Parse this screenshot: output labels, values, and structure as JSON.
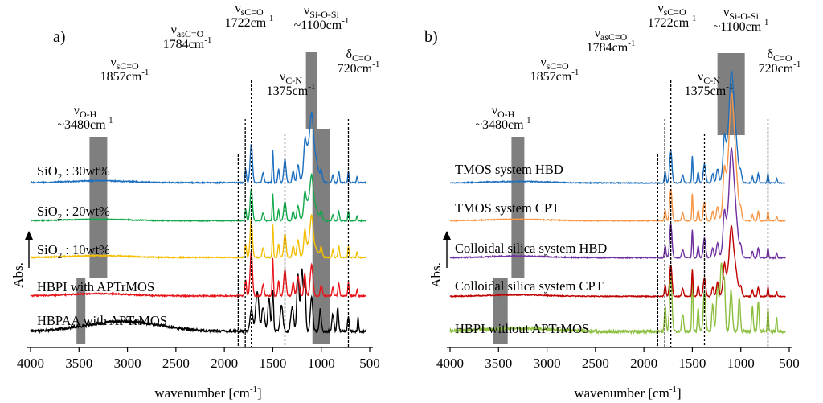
{
  "figure": {
    "xlabel": "wavenumber [cm",
    "xlabel_sup": "-1",
    "xlabel_end": "]",
    "ylabel": "Abs."
  },
  "chart_data": [
    {
      "type": "line",
      "panel": "a)",
      "xlim": [
        4000,
        500
      ],
      "xticks": [
        4000,
        3500,
        3000,
        2500,
        2000,
        1500,
        1000,
        500
      ],
      "xlabel": "wavenumber [cm-1]",
      "ylabel": "Abs.",
      "series": [
        {
          "name": "HBPAA with APTrMOS",
          "color": "#000000"
        },
        {
          "name": "HBPI with APTrMOS",
          "color": "#e8151b"
        },
        {
          "name": "SiO2 : 10wt%",
          "color": "#f4be00"
        },
        {
          "name": "SiO2 : 20wt%",
          "color": "#12a84b"
        },
        {
          "name": "SiO2 : 30wt%",
          "color": "#1d6fbf"
        }
      ],
      "labels": [
        {
          "base": "SiO",
          "sub": "2",
          "rest": " : 30wt%"
        },
        {
          "base": "SiO",
          "sub": "2",
          "rest": " : 20wt%"
        },
        {
          "base": "SiO",
          "sub": "2",
          "rest": " : 10wt%"
        },
        {
          "base": "HBPI with APTrMOS",
          "sub": "",
          "rest": ""
        },
        {
          "base": "HBPAA with APTrMOS",
          "sub": "",
          "rest": ""
        }
      ],
      "annotations": [
        {
          "sym": "ν",
          "sub": "sC=O",
          "val": "1857cm",
          "sup": "-1",
          "x": 1857
        },
        {
          "sym": "ν",
          "sub": "asC=O",
          "val": "1784cm",
          "sup": "-1",
          "x": 1784
        },
        {
          "sym": "ν",
          "sub": "sC=O",
          "val": "1722cm",
          "sup": "-1",
          "x": 1722
        },
        {
          "sym": "ν",
          "sub": "C-N",
          "val": "1375cm",
          "sup": "-1",
          "x": 1375
        },
        {
          "sym": "ν",
          "sub": "Si-O-Si",
          "val": "~1100cm",
          "sup": "-1",
          "x": 1100
        },
        {
          "sym": "δ",
          "sub": "C=O",
          "val": "720cm",
          "sup": "-1",
          "x": 720
        },
        {
          "sym": "ν",
          "sub": "O-H",
          "val": "~3480cm",
          "sup": "-1",
          "x": 3480
        }
      ]
    },
    {
      "type": "line",
      "panel": "b)",
      "xlim": [
        4000,
        500
      ],
      "xticks": [
        4000,
        3500,
        3000,
        2500,
        2000,
        1500,
        1000,
        500
      ],
      "xlabel": "wavenumber [cm-1]",
      "ylabel": "Abs.",
      "series": [
        {
          "name": "HBPI without APTrMOS",
          "color": "#8cbf3f"
        },
        {
          "name": "Colloidal silica system CPT",
          "color": "#c00000"
        },
        {
          "name": "Colloidal silica system HBD",
          "color": "#7030a0"
        },
        {
          "name": "TMOS system CPT",
          "color": "#f79646"
        },
        {
          "name": "TMOS system HBD",
          "color": "#1d6fbf"
        }
      ],
      "labels": [
        {
          "base": "TMOS system HBD",
          "sub": "",
          "rest": ""
        },
        {
          "base": "TMOS system CPT",
          "sub": "",
          "rest": ""
        },
        {
          "base": "Colloidal silica system HBD",
          "sub": "",
          "rest": ""
        },
        {
          "base": "Colloidal silica system CPT",
          "sub": "",
          "rest": ""
        },
        {
          "base": "HBPI without APTrMOS",
          "sub": "",
          "rest": ""
        }
      ],
      "annotations": [
        {
          "sym": "ν",
          "sub": "sC=O",
          "val": "1857cm",
          "sup": "-1",
          "x": 1857
        },
        {
          "sym": "ν",
          "sub": "asC=O",
          "val": "1784cm",
          "sup": "-1",
          "x": 1784
        },
        {
          "sym": "ν",
          "sub": "sC=O",
          "val": "1722cm",
          "sup": "-1",
          "x": 1722
        },
        {
          "sym": "ν",
          "sub": "C-N",
          "val": "1375cm",
          "sup": "-1",
          "x": 1375
        },
        {
          "sym": "ν",
          "sub": "Si-O-Si",
          "val": "~1100cm",
          "sup": "-1",
          "x": 1100
        },
        {
          "sym": "δ",
          "sub": "C=O",
          "val": "720cm",
          "sup": "-1",
          "x": 720
        },
        {
          "sym": "ν",
          "sub": "O-H",
          "val": "~3480cm",
          "sup": "-1",
          "x": 3480
        }
      ]
    }
  ]
}
